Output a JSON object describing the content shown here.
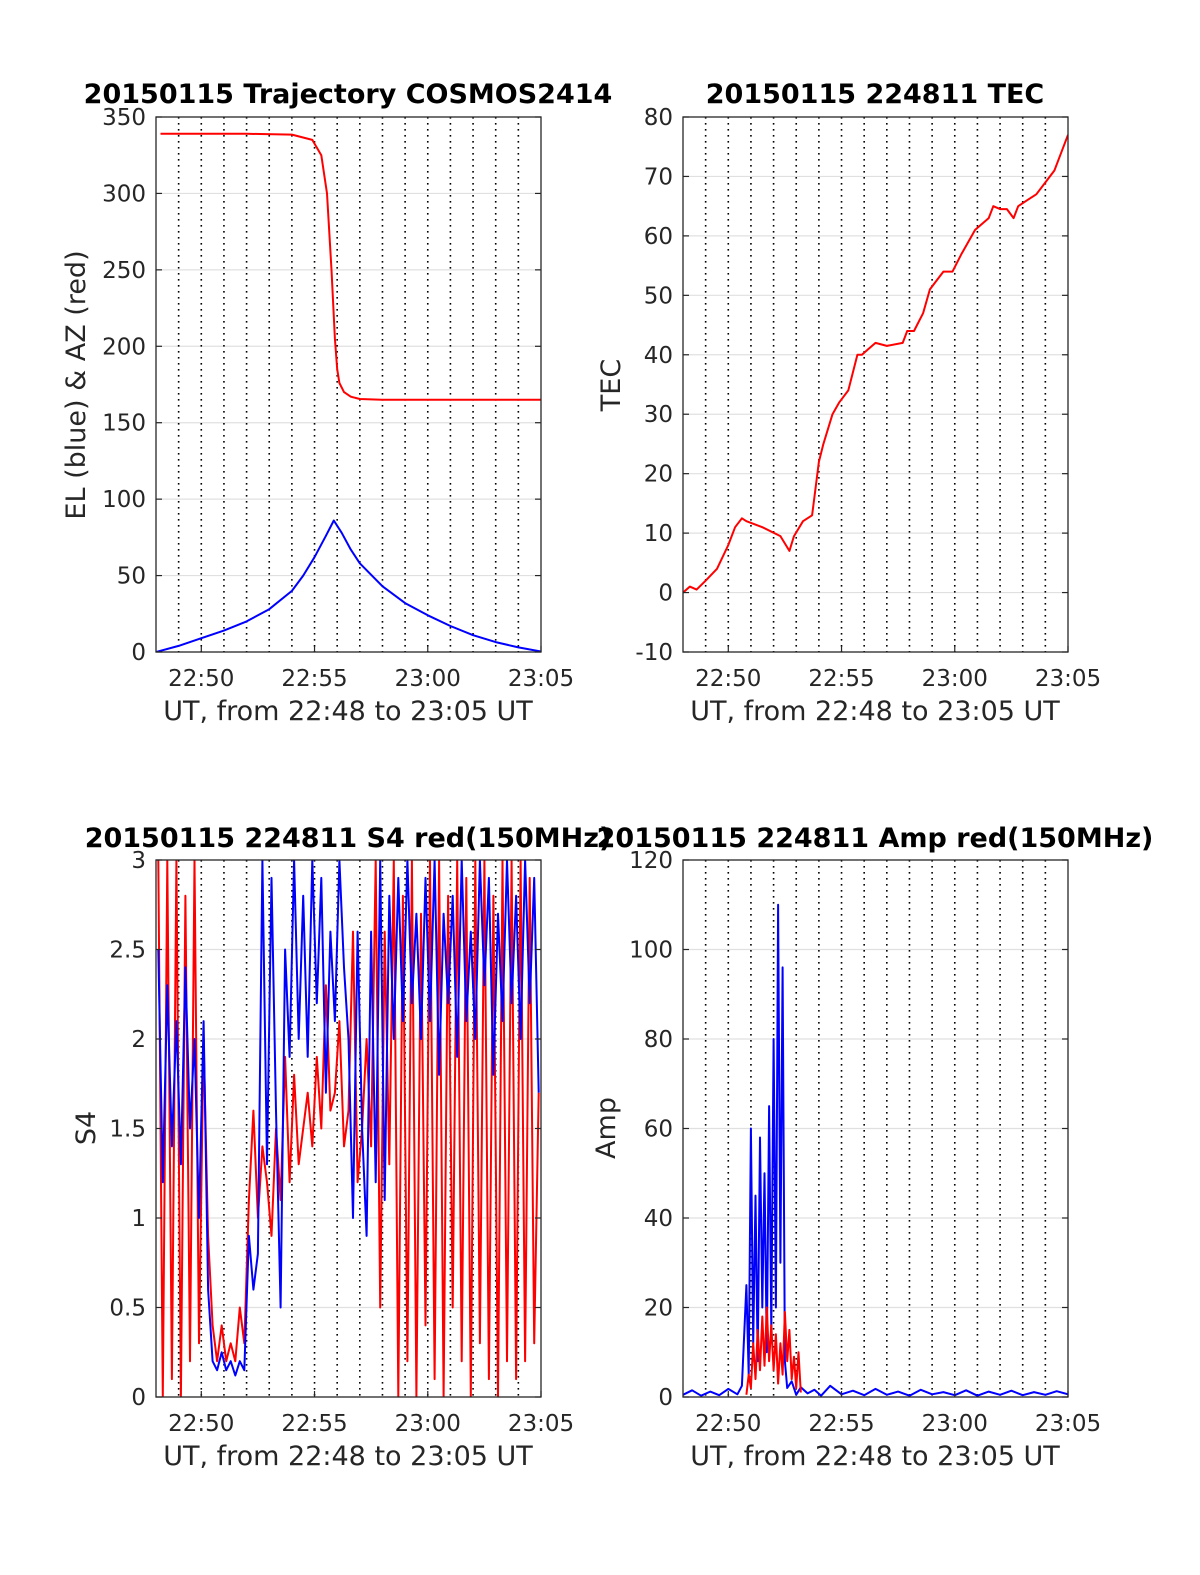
{
  "chart_data": [
    {
      "id": "trajectory",
      "type": "line",
      "title": "20150115 Trajectory COSMOS2414",
      "xlabel": "UT, from 22:48 to 23:05 UT",
      "ylabel": "EL (blue) & AZ (red)",
      "x_unit": "minutes",
      "xlim": [
        1368,
        1385
      ],
      "ylim": [
        0,
        350
      ],
      "xtick_values": [
        1370,
        1375,
        1380,
        1385
      ],
      "xtick_labels": [
        "22:50",
        "22:55",
        "23:00",
        "23:05"
      ],
      "yticks": [
        0,
        50,
        100,
        150,
        200,
        250,
        300,
        350
      ],
      "vertical_dotted_grid_minutes": [
        1369,
        1370,
        1371,
        1372,
        1373,
        1374,
        1375,
        1376,
        1377,
        1378,
        1379,
        1380,
        1381,
        1382,
        1383,
        1384
      ],
      "horizontal_grid": true,
      "series": [
        {
          "color": "#ff0000",
          "x": [
            1368.2,
            1370,
            1372,
            1374,
            1374.9,
            1375.3,
            1375.55,
            1375.75,
            1375.9,
            1376.0,
            1376.1,
            1376.3,
            1376.6,
            1377.0,
            1378.0,
            1380,
            1382,
            1385
          ],
          "y": [
            339,
            339,
            339,
            338.5,
            335,
            325,
            300,
            250,
            205,
            185,
            176,
            170,
            167,
            165.5,
            165,
            165,
            165,
            165
          ]
        },
        {
          "color": "#0000ff",
          "x": [
            1368.0,
            1369,
            1370,
            1371,
            1372,
            1373,
            1374,
            1374.5,
            1375.0,
            1375.5,
            1375.85,
            1376.2,
            1376.6,
            1377,
            1378,
            1379,
            1380,
            1381,
            1382,
            1383,
            1384,
            1385
          ],
          "y": [
            0,
            4,
            9,
            14,
            20,
            28,
            40,
            50,
            62,
            76,
            86,
            78,
            67,
            58,
            43,
            32,
            24,
            17,
            11,
            6.5,
            3,
            0.3
          ]
        }
      ]
    },
    {
      "id": "tec",
      "type": "line",
      "title": "20150115 224811 TEC",
      "xlabel": "UT, from 22:48 to 23:05 UT",
      "ylabel": "TEC",
      "x_unit": "minutes",
      "xlim": [
        1368,
        1385
      ],
      "ylim": [
        -10,
        80
      ],
      "xtick_values": [
        1370,
        1375,
        1380,
        1385
      ],
      "xtick_labels": [
        "22:50",
        "22:55",
        "23:00",
        "23:05"
      ],
      "yticks": [
        -10,
        0,
        10,
        20,
        30,
        40,
        50,
        60,
        70,
        80
      ],
      "vertical_dotted_grid_minutes": [
        1369,
        1370,
        1371,
        1372,
        1373,
        1374,
        1375,
        1376,
        1377,
        1378,
        1379,
        1380,
        1381,
        1382,
        1383,
        1384
      ],
      "horizontal_grid": true,
      "series": [
        {
          "color": "#ff0000",
          "x": [
            1368.0,
            1368.3,
            1368.6,
            1369.0,
            1369.5,
            1370.0,
            1370.3,
            1370.6,
            1370.8,
            1371.5,
            1372.3,
            1372.7,
            1372.9,
            1373.3,
            1373.7,
            1374.0,
            1374.2,
            1374.6,
            1374.9,
            1375.3,
            1375.7,
            1375.9,
            1376.2,
            1376.5,
            1377.0,
            1377.7,
            1377.9,
            1378.2,
            1378.6,
            1378.9,
            1379.3,
            1379.5,
            1379.9,
            1380.3,
            1380.6,
            1380.9,
            1381.2,
            1381.5,
            1381.7,
            1382.0,
            1382.3,
            1382.6,
            1382.8,
            1383.2,
            1383.6,
            1384.0,
            1384.4,
            1384.7,
            1385.0
          ],
          "y": [
            0,
            1,
            0.5,
            2,
            4,
            8,
            11,
            12.5,
            12,
            11,
            9.5,
            7,
            9.5,
            12,
            13,
            22,
            25,
            30,
            32,
            34,
            40,
            40,
            41,
            42,
            41.5,
            42,
            44,
            44,
            47,
            51,
            53,
            54,
            54,
            57,
            59,
            61,
            62,
            63,
            65,
            64.5,
            64.5,
            63,
            65,
            66,
            67,
            69,
            71,
            74,
            77
          ]
        }
      ]
    },
    {
      "id": "s4",
      "type": "line",
      "title": "20150115 224811 S4 red(150MHz)",
      "xlabel": "UT, from 22:48 to 23:05 UT",
      "ylabel": "S4",
      "x_unit": "minutes",
      "xlim": [
        1368,
        1385
      ],
      "ylim": [
        0,
        3
      ],
      "xtick_values": [
        1370,
        1375,
        1380,
        1385
      ],
      "xtick_labels": [
        "22:50",
        "22:55",
        "23:00",
        "23:05"
      ],
      "yticks": [
        0,
        0.5,
        1,
        1.5,
        2,
        2.5,
        3
      ],
      "ytick_labels": [
        "0",
        "0.5",
        "1",
        "1.5",
        "2",
        "2.5",
        "3"
      ],
      "vertical_dotted_grid_minutes": [
        1369,
        1370,
        1371,
        1372,
        1373,
        1374,
        1375,
        1376,
        1377,
        1378,
        1379,
        1380,
        1381,
        1382,
        1383,
        1384
      ],
      "horizontal_grid": true,
      "series": [
        {
          "color": "#ff0000",
          "x": [
            1368.1,
            1368.3,
            1368.5,
            1368.7,
            1368.9,
            1369.1,
            1369.3,
            1369.5,
            1369.7,
            1369.9,
            1370.1,
            1370.3,
            1370.5,
            1370.7,
            1370.9,
            1371.1,
            1371.3,
            1371.5,
            1371.7,
            1371.9,
            1372.1,
            1372.3,
            1372.5,
            1372.7,
            1372.9,
            1373.1,
            1373.3,
            1373.5,
            1373.7,
            1373.9,
            1374.1,
            1374.3,
            1374.5,
            1374.7,
            1374.9,
            1375.1,
            1375.3,
            1375.5,
            1375.7,
            1375.9,
            1376.1,
            1376.3,
            1376.5,
            1376.7,
            1376.9,
            1377.1,
            1377.3,
            1377.5,
            1377.7,
            1377.9,
            1378.1,
            1378.3,
            1378.5,
            1378.7,
            1378.9,
            1379.1,
            1379.3,
            1379.5,
            1379.7,
            1379.9,
            1380.1,
            1380.3,
            1380.5,
            1380.7,
            1380.9,
            1381.1,
            1381.3,
            1381.5,
            1381.7,
            1381.9,
            1382.1,
            1382.3,
            1382.5,
            1382.7,
            1382.9,
            1383.1,
            1383.3,
            1383.5,
            1383.7,
            1383.9,
            1384.1,
            1384.3,
            1384.5,
            1384.7,
            1384.9
          ],
          "y": [
            3,
            0,
            3,
            0.1,
            3,
            0,
            2.8,
            0.2,
            3,
            0.3,
            2.0,
            0.9,
            0.4,
            0.2,
            0.4,
            0.2,
            0.3,
            0.2,
            0.5,
            0.3,
            1.1,
            1.6,
            1.0,
            1.4,
            1.2,
            0.9,
            1.5,
            1.1,
            1.9,
            1.2,
            1.8,
            1.3,
            1.5,
            1.7,
            1.4,
            1.9,
            1.5,
            2.3,
            1.6,
            1.7,
            2.1,
            1.4,
            1.6,
            2.6,
            1.2,
            1.5,
            2.0,
            1.4,
            3,
            0.5,
            2.6,
            1.3,
            3,
            0,
            2.8,
            0.2,
            3,
            0,
            2.7,
            0.4,
            3,
            0.1,
            3,
            0,
            2.8,
            0.5,
            3,
            0.2,
            2.9,
            0,
            3,
            0.3,
            3,
            0.1,
            2.8,
            0,
            3,
            0.2,
            3,
            0.1,
            3,
            0.2,
            2.9,
            0.3,
            1.7
          ]
        },
        {
          "color": "#0000ff",
          "x": [
            1368.1,
            1368.3,
            1368.5,
            1368.7,
            1368.9,
            1369.1,
            1369.3,
            1369.5,
            1369.7,
            1369.9,
            1370.1,
            1370.3,
            1370.5,
            1370.7,
            1370.9,
            1371.1,
            1371.3,
            1371.5,
            1371.7,
            1371.9,
            1372.1,
            1372.3,
            1372.5,
            1372.7,
            1372.9,
            1373.1,
            1373.3,
            1373.5,
            1373.7,
            1373.9,
            1374.1,
            1374.3,
            1374.5,
            1374.7,
            1374.9,
            1375.1,
            1375.3,
            1375.5,
            1375.7,
            1375.9,
            1376.1,
            1376.3,
            1376.5,
            1376.7,
            1376.9,
            1377.1,
            1377.3,
            1377.5,
            1377.7,
            1377.9,
            1378.1,
            1378.3,
            1378.5,
            1378.7,
            1378.9,
            1379.1,
            1379.3,
            1379.5,
            1379.7,
            1379.9,
            1380.1,
            1380.3,
            1380.5,
            1380.7,
            1380.9,
            1381.1,
            1381.3,
            1381.5,
            1381.7,
            1381.9,
            1382.1,
            1382.3,
            1382.5,
            1382.7,
            1382.9,
            1383.1,
            1383.3,
            1383.5,
            1383.7,
            1383.9,
            1384.1,
            1384.3,
            1384.5,
            1384.7,
            1384.9
          ],
          "y": [
            2.5,
            1.2,
            2.3,
            1.4,
            2.1,
            1.3,
            2.4,
            1.5,
            2.0,
            1.0,
            2.1,
            0.6,
            0.2,
            0.15,
            0.25,
            0.15,
            0.2,
            0.12,
            0.2,
            0.15,
            0.9,
            0.6,
            0.8,
            3,
            1.3,
            2.9,
            1.6,
            0.5,
            2.5,
            1.9,
            3,
            2.0,
            2.8,
            1.9,
            3,
            2.2,
            2.9,
            1.7,
            2.6,
            2.1,
            3,
            2.4,
            2.0,
            1.0,
            2.6,
            1.5,
            0.9,
            2.6,
            1.2,
            3,
            1.1,
            2.8,
            2.0,
            2.9,
            2.1,
            3,
            2.2,
            2.7,
            2.0,
            2.9,
            2.1,
            3,
            1.8,
            2.7,
            2.2,
            2.8,
            1.9,
            3,
            2.1,
            2.6,
            2.0,
            3,
            2.3,
            2.9,
            1.8,
            2.7,
            2.1,
            3,
            2.2,
            2.8,
            2.0,
            3,
            2.2,
            2.9,
            1.7
          ]
        }
      ]
    },
    {
      "id": "amp",
      "type": "line",
      "title": "20150115 224811 Amp red(150MHz)",
      "xlabel": "UT, from 22:48 to 23:05 UT",
      "ylabel": "Amp",
      "x_unit": "minutes",
      "xlim": [
        1368,
        1385
      ],
      "ylim": [
        0,
        120
      ],
      "xtick_values": [
        1370,
        1375,
        1380,
        1385
      ],
      "xtick_labels": [
        "22:50",
        "22:55",
        "23:00",
        "23:05"
      ],
      "yticks": [
        0,
        20,
        40,
        60,
        80,
        100,
        120
      ],
      "vertical_dotted_grid_minutes": [
        1369,
        1370,
        1371,
        1372,
        1373,
        1374,
        1375,
        1376,
        1377,
        1378,
        1379,
        1380,
        1381,
        1382,
        1383,
        1384
      ],
      "horizontal_grid": true,
      "series": [
        {
          "color": "#0000ff",
          "x": [
            1368.0,
            1368.4,
            1368.8,
            1369.2,
            1369.6,
            1370.0,
            1370.4,
            1370.6,
            1370.8,
            1370.9,
            1371.0,
            1371.1,
            1371.2,
            1371.3,
            1371.4,
            1371.5,
            1371.6,
            1371.7,
            1371.8,
            1371.9,
            1372.0,
            1372.1,
            1372.2,
            1372.3,
            1372.4,
            1372.5,
            1372.6,
            1372.8,
            1373.0,
            1373.2,
            1373.5,
            1373.8,
            1374.1,
            1374.5,
            1375.0,
            1375.5,
            1376.0,
            1376.5,
            1377.0,
            1377.5,
            1378.0,
            1378.5,
            1379.0,
            1379.5,
            1380.0,
            1380.5,
            1381.0,
            1381.5,
            1382.0,
            1382.5,
            1383.0,
            1383.5,
            1384.0,
            1384.5,
            1385.0
          ],
          "y": [
            0.5,
            1.5,
            0.3,
            1.2,
            0.4,
            1.8,
            0.6,
            2.5,
            25,
            5,
            60,
            12,
            45,
            8,
            58,
            20,
            50,
            10,
            65,
            15,
            80,
            20,
            110,
            30,
            96,
            8,
            2,
            3.5,
            0.5,
            2.2,
            0.8,
            1.6,
            0.3,
            2.5,
            0.6,
            1.4,
            0.4,
            1.8,
            0.5,
            1.2,
            0.3,
            1.6,
            0.6,
            1.1,
            0.4,
            1.5,
            0.3,
            1.2,
            0.5,
            1.4,
            0.4,
            1.1,
            0.5,
            1.3,
            0.6
          ]
        },
        {
          "color": "#ff0000",
          "x": [
            1370.8,
            1370.9,
            1371.0,
            1371.1,
            1371.2,
            1371.3,
            1371.4,
            1371.5,
            1371.6,
            1371.7,
            1371.8,
            1371.9,
            1372.0,
            1372.1,
            1372.2,
            1372.3,
            1372.4,
            1372.5,
            1372.6,
            1372.7,
            1372.8,
            1372.9,
            1373.0,
            1373.1,
            1373.2
          ],
          "y": [
            0.5,
            5,
            2,
            12,
            4,
            15,
            6,
            18,
            7,
            20,
            8,
            16,
            6,
            14,
            3,
            12,
            5,
            19,
            8,
            15,
            4,
            9,
            2,
            10,
            1
          ]
        }
      ]
    }
  ]
}
